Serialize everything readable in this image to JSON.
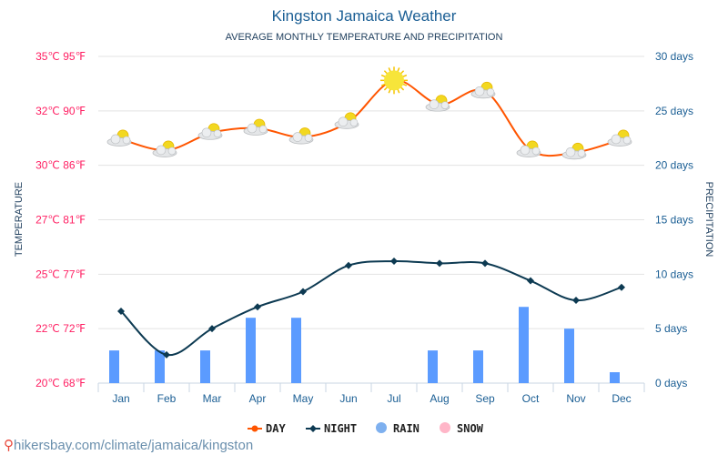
{
  "title": "Kingston Jamaica Weather",
  "subtitle": "AVERAGE MONTHLY TEMPERATURE AND PRECIPITATION",
  "url": "hikersbay.com/climate/jamaica/kingston",
  "colors": {
    "day": "#ff5500",
    "night": "#0d3a52",
    "rain": "#5b9bff",
    "snow": "#ffb6c8",
    "left_axis": "#ff2063",
    "right_axis": "#1a5e94",
    "grid": "#e3e3e3"
  },
  "chart_data": {
    "type": "line",
    "categories": [
      "Jan",
      "Feb",
      "Mar",
      "Apr",
      "May",
      "Jun",
      "Jul",
      "Aug",
      "Sep",
      "Oct",
      "Nov",
      "Dec"
    ],
    "ylabel_left": "TEMPERATURE",
    "ylabel_right": "PRECIPITATION",
    "ylim_left": [
      20,
      35
    ],
    "ylim_right": [
      0,
      30
    ],
    "left_ticks": [
      "20℃ 68℉",
      "22℃ 72℉",
      "25℃ 77℉",
      "27℃ 81℉",
      "30℃ 86℉",
      "32℃ 90℉",
      "35℃ 95℉"
    ],
    "right_ticks": [
      "0 days",
      "5 days",
      "10 days",
      "15 days",
      "20 days",
      "25 days",
      "30 days"
    ],
    "grid": true,
    "legend_position": "bottom",
    "series": [
      {
        "name": "DAY",
        "type": "line",
        "values": [
          31.2,
          30.7,
          31.5,
          31.7,
          31.3,
          32.0,
          33.9,
          32.8,
          33.4,
          30.7,
          30.6,
          31.2
        ],
        "icons": [
          "partly-cloudy",
          "partly-cloudy",
          "partly-cloudy",
          "partly-cloudy",
          "partly-cloudy",
          "partly-cloudy",
          "sunny",
          "partly-cloudy",
          "partly-cloudy",
          "partly-cloudy",
          "partly-cloudy",
          "partly-cloudy"
        ]
      },
      {
        "name": "NIGHT",
        "type": "line",
        "values": [
          23.3,
          21.3,
          22.5,
          23.5,
          24.2,
          25.4,
          25.6,
          25.5,
          25.5,
          24.7,
          23.8,
          24.4
        ]
      },
      {
        "name": "RAIN",
        "type": "bar",
        "unit": "days",
        "values": [
          3,
          3,
          3,
          6,
          6,
          0,
          0,
          3,
          3,
          7,
          5,
          1
        ]
      },
      {
        "name": "SNOW",
        "type": "bar",
        "unit": "days",
        "values": [
          0,
          0,
          0,
          0,
          0,
          0,
          0,
          0,
          0,
          0,
          0,
          0
        ]
      }
    ]
  }
}
